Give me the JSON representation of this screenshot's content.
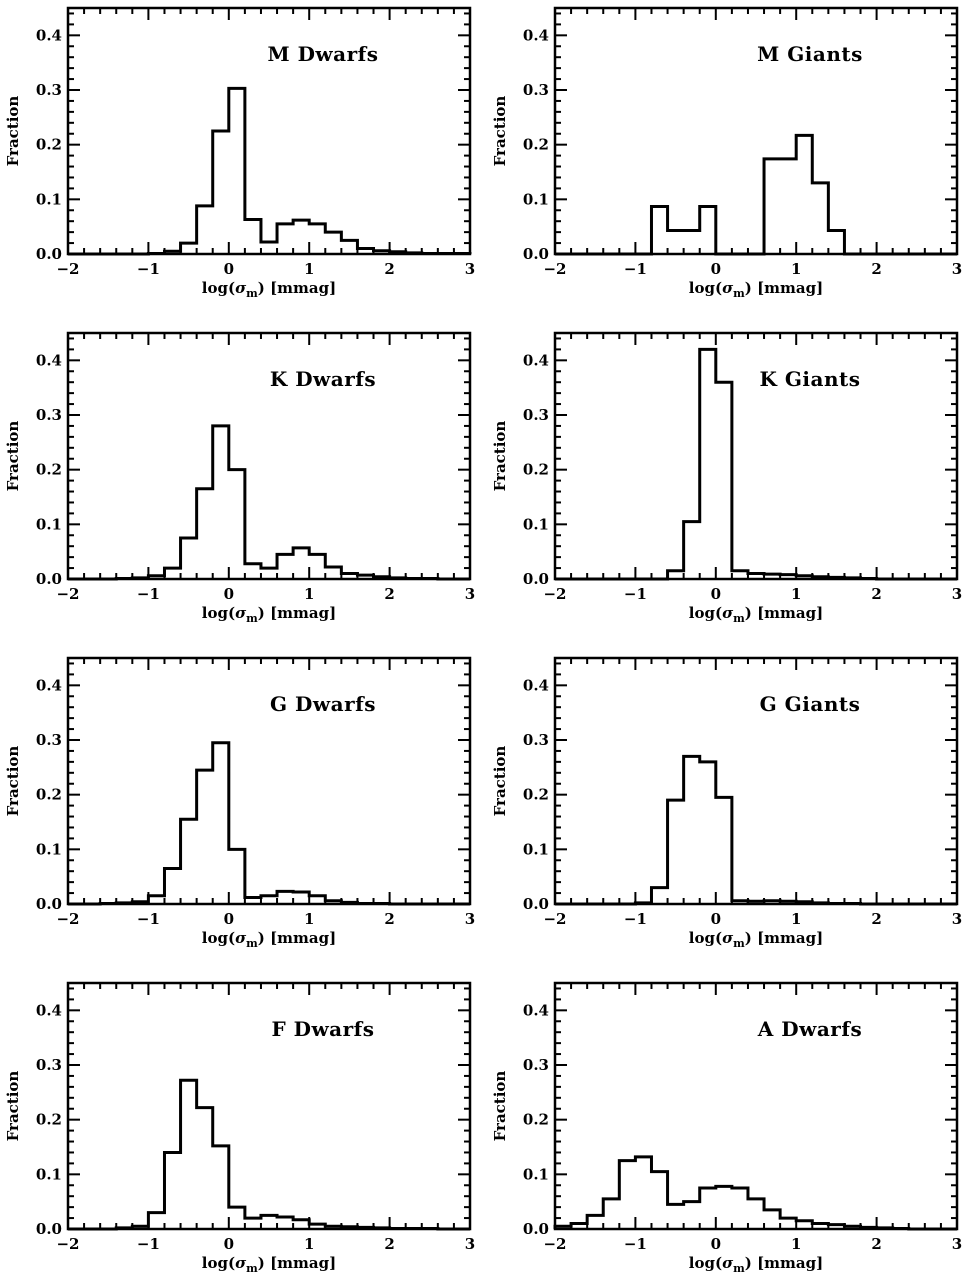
{
  "figure": {
    "xlabel_prefix": "log(",
    "xlabel_symbol": "σ",
    "xlabel_subscript": "m",
    "xlabel_suffix": ") [mmag]",
    "ylabel": "Fraction"
  },
  "chart_data": [
    {
      "type": "bar",
      "title": "M Dwarfs",
      "xlabel": "log(σm) [mmag]",
      "ylabel": "Fraction",
      "xlim": [
        -2,
        3
      ],
      "ylim": [
        0,
        0.45
      ],
      "xticks": [
        -2,
        -1,
        0,
        1,
        2,
        3
      ],
      "yticks": [
        0.0,
        0.1,
        0.2,
        0.3,
        0.4
      ],
      "bin_width": 0.2,
      "bin_start": -2.0,
      "values": [
        0,
        0,
        0,
        0,
        0,
        0.001,
        0.005,
        0.02,
        0.088,
        0.225,
        0.303,
        0.063,
        0.022,
        0.055,
        0.062,
        0.055,
        0.04,
        0.025,
        0.01,
        0.006,
        0.004,
        0.002,
        0.001,
        0.001,
        0.001
      ]
    },
    {
      "type": "bar",
      "title": "M Giants",
      "xlabel": "log(σm) [mmag]",
      "ylabel": "Fraction",
      "xlim": [
        -2,
        3
      ],
      "ylim": [
        0,
        0.45
      ],
      "xticks": [
        -2,
        -1,
        0,
        1,
        2,
        3
      ],
      "yticks": [
        0.0,
        0.1,
        0.2,
        0.3,
        0.4
      ],
      "bin_width": 0.2,
      "bin_start": -2.0,
      "values": [
        0,
        0,
        0,
        0,
        0,
        0,
        0.087,
        0.043,
        0.043,
        0.087,
        0,
        0,
        0,
        0.174,
        0.174,
        0.217,
        0.13,
        0.043,
        0,
        0,
        0,
        0,
        0,
        0,
        0
      ]
    },
    {
      "type": "bar",
      "title": "K Dwarfs",
      "xlabel": "log(σm) [mmag]",
      "ylabel": "Fraction",
      "xlim": [
        -2,
        3
      ],
      "ylim": [
        0,
        0.45
      ],
      "xticks": [
        -2,
        -1,
        0,
        1,
        2,
        3
      ],
      "yticks": [
        0.0,
        0.1,
        0.2,
        0.3,
        0.4
      ],
      "bin_width": 0.2,
      "bin_start": -2.0,
      "values": [
        0,
        0,
        0,
        0.001,
        0.002,
        0.006,
        0.02,
        0.075,
        0.165,
        0.28,
        0.2,
        0.028,
        0.02,
        0.045,
        0.057,
        0.045,
        0.022,
        0.01,
        0.007,
        0.004,
        0.002,
        0.001,
        0.001,
        0,
        0
      ]
    },
    {
      "type": "bar",
      "title": "K Giants",
      "xlabel": "log(σm) [mmag]",
      "ylabel": "Fraction",
      "xlim": [
        -2,
        3
      ],
      "ylim": [
        0,
        0.45
      ],
      "xticks": [
        -2,
        -1,
        0,
        1,
        2,
        3
      ],
      "yticks": [
        0.0,
        0.1,
        0.2,
        0.3,
        0.4
      ],
      "bin_width": 0.2,
      "bin_start": -2.0,
      "values": [
        0,
        0,
        0,
        0,
        0,
        0,
        0,
        0.015,
        0.105,
        0.42,
        0.36,
        0.015,
        0.01,
        0.009,
        0.008,
        0.006,
        0.004,
        0.003,
        0.002,
        0.001,
        0,
        0,
        0,
        0,
        0
      ]
    },
    {
      "type": "bar",
      "title": "G Dwarfs",
      "xlabel": "log(σm) [mmag]",
      "ylabel": "Fraction",
      "xlim": [
        -2,
        3
      ],
      "ylim": [
        0,
        0.45
      ],
      "xticks": [
        -2,
        -1,
        0,
        1,
        2,
        3
      ],
      "yticks": [
        0.0,
        0.1,
        0.2,
        0.3,
        0.4
      ],
      "bin_width": 0.2,
      "bin_start": -2.0,
      "values": [
        0,
        0,
        0.001,
        0.002,
        0.004,
        0.015,
        0.065,
        0.155,
        0.245,
        0.295,
        0.1,
        0.012,
        0.015,
        0.023,
        0.022,
        0.015,
        0.006,
        0.003,
        0.001,
        0.001,
        0,
        0,
        0,
        0,
        0
      ]
    },
    {
      "type": "bar",
      "title": "G Giants",
      "xlabel": "log(σm) [mmag]",
      "ylabel": "Fraction",
      "xlim": [
        -2,
        3
      ],
      "ylim": [
        0,
        0.45
      ],
      "xticks": [
        -2,
        -1,
        0,
        1,
        2,
        3
      ],
      "yticks": [
        0.0,
        0.1,
        0.2,
        0.3,
        0.4
      ],
      "bin_width": 0.2,
      "bin_start": -2.0,
      "values": [
        0,
        0,
        0,
        0,
        0,
        0.002,
        0.03,
        0.19,
        0.27,
        0.26,
        0.195,
        0.006,
        0.005,
        0.006,
        0.005,
        0.004,
        0.002,
        0.001,
        0.001,
        0,
        0,
        0,
        0,
        0,
        0
      ]
    },
    {
      "type": "bar",
      "title": "F Dwarfs",
      "xlabel": "log(σm) [mmag]",
      "ylabel": "Fraction",
      "xlim": [
        -2,
        3
      ],
      "ylim": [
        0,
        0.45
      ],
      "xticks": [
        -2,
        -1,
        0,
        1,
        2,
        3
      ],
      "yticks": [
        0.0,
        0.1,
        0.2,
        0.3,
        0.4
      ],
      "bin_width": 0.2,
      "bin_start": -2.0,
      "values": [
        0,
        0,
        0,
        0.002,
        0.005,
        0.03,
        0.14,
        0.272,
        0.222,
        0.152,
        0.04,
        0.02,
        0.025,
        0.022,
        0.017,
        0.009,
        0.005,
        0.004,
        0.003,
        0.002,
        0.001,
        0.001,
        0.001,
        0,
        0
      ]
    },
    {
      "type": "bar",
      "title": "A Dwarfs",
      "xlabel": "log(σm) [mmag]",
      "ylabel": "Fraction",
      "xlim": [
        -2,
        3
      ],
      "ylim": [
        0,
        0.45
      ],
      "xticks": [
        -2,
        -1,
        0,
        1,
        2,
        3
      ],
      "yticks": [
        0.0,
        0.1,
        0.2,
        0.3,
        0.4
      ],
      "bin_width": 0.2,
      "bin_start": -2.0,
      "values": [
        0.005,
        0.01,
        0.025,
        0.055,
        0.125,
        0.132,
        0.105,
        0.045,
        0.05,
        0.075,
        0.078,
        0.075,
        0.055,
        0.035,
        0.02,
        0.015,
        0.01,
        0.008,
        0.005,
        0.003,
        0.002,
        0.001,
        0,
        0,
        0
      ]
    }
  ]
}
